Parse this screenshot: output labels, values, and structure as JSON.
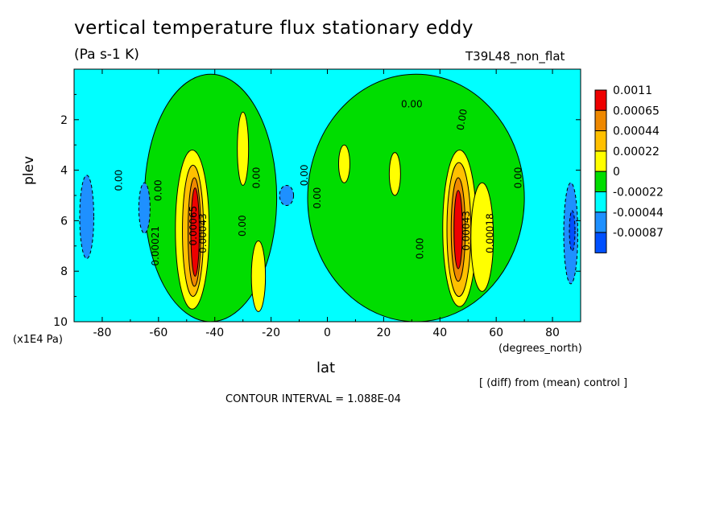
{
  "chart_data": {
    "type": "heatmap",
    "title": "vertical temperature flux stationary eddy",
    "units_label": "(Pa s-1 K)",
    "run_label": "T39L48_non_flat",
    "xlabel": "lat",
    "x_units": "(degrees_north)",
    "ylabel": "plev",
    "y_units": "(x1E4 Pa)",
    "note": "[ (diff) from (mean) control ]",
    "contour_interval": "CONTOUR INTERVAL = 1.088E-04",
    "xlim": [
      -90,
      90
    ],
    "ylim": [
      10,
      0
    ],
    "x_ticks": [
      -80,
      -60,
      -40,
      -20,
      0,
      20,
      40,
      60,
      80
    ],
    "y_ticks": [
      2,
      4,
      6,
      8,
      10
    ],
    "legend": {
      "placement": "right",
      "levels": [
        {
          "label": "0.0011",
          "color": "#ee0000"
        },
        {
          "label": "0.00065",
          "color": "#ee8800"
        },
        {
          "label": "0.00044",
          "color": "#ffc000"
        },
        {
          "label": "0.00022",
          "color": "#ffff00"
        },
        {
          "label": "0",
          "color": "#00dd00"
        },
        {
          "label": "-0.00022",
          "color": "#00ffff"
        },
        {
          "label": "-0.00044",
          "color": "#1e90ff"
        },
        {
          "label": "-0.00087",
          "color": "#0050ff"
        }
      ]
    },
    "background_level": "-0.00022",
    "features": [
      {
        "lat": [
          -65,
          -18
        ],
        "plev": [
          0.2,
          10
        ],
        "level": "0"
      },
      {
        "lat": [
          -7,
          70
        ],
        "plev": [
          0.2,
          10
        ],
        "level": "0"
      },
      {
        "lat": [
          -54,
          -42
        ],
        "plev": [
          3.2,
          9.5
        ],
        "level": "0.00022"
      },
      {
        "lat": [
          -51.5,
          -44
        ],
        "plev": [
          3.8,
          9.0
        ],
        "level": "0.00044"
      },
      {
        "lat": [
          -49.5,
          -45
        ],
        "plev": [
          4.3,
          8.6
        ],
        "level": "0.00065"
      },
      {
        "lat": [
          -48.5,
          -45.5
        ],
        "plev": [
          4.7,
          8.2
        ],
        "level": "0.0011"
      },
      {
        "lat": [
          41,
          53
        ],
        "plev": [
          3.2,
          9.4
        ],
        "level": "0.00022"
      },
      {
        "lat": [
          42.5,
          51
        ],
        "plev": [
          3.7,
          9.0
        ],
        "level": "0.00044"
      },
      {
        "lat": [
          44,
          49
        ],
        "plev": [
          4.3,
          8.4
        ],
        "level": "0.00065"
      },
      {
        "lat": [
          45,
          48
        ],
        "plev": [
          4.8,
          7.9
        ],
        "level": "0.0011"
      },
      {
        "lat": [
          51,
          59
        ],
        "plev": [
          4.5,
          8.8
        ],
        "level": "0.00022"
      },
      {
        "lat": [
          -32,
          -28
        ],
        "plev": [
          1.7,
          4.6
        ],
        "level": "0.00022"
      },
      {
        "lat": [
          -27,
          -22
        ],
        "plev": [
          6.8,
          9.6
        ],
        "level": "0.00022"
      },
      {
        "lat": [
          4,
          8
        ],
        "plev": [
          3.0,
          4.5
        ],
        "level": "0.00022"
      },
      {
        "lat": [
          22,
          26
        ],
        "plev": [
          3.3,
          5.0
        ],
        "level": "0.00022"
      },
      {
        "lat": [
          -88,
          -83
        ],
        "plev": [
          4.2,
          7.5
        ],
        "level": "-0.00044"
      },
      {
        "lat": [
          -67,
          -63
        ],
        "plev": [
          4.5,
          6.5
        ],
        "level": "-0.00044"
      },
      {
        "lat": [
          -17,
          -12
        ],
        "plev": [
          4.6,
          5.4
        ],
        "level": "-0.00044"
      },
      {
        "lat": [
          84,
          89
        ],
        "plev": [
          4.5,
          8.5
        ],
        "level": "-0.00044"
      },
      {
        "lat": [
          86,
          88
        ],
        "plev": [
          5.6,
          7.2
        ],
        "level": "-0.00087"
      }
    ],
    "contour_labels": [
      {
        "text": "0.00",
        "lat": 30,
        "plev": 1.4,
        "rotate": 0
      },
      {
        "text": "0.00",
        "lat": 48,
        "plev": 2.0,
        "rotate": -80
      },
      {
        "text": "0.00",
        "lat": -74,
        "plev": 4.4,
        "rotate": -90
      },
      {
        "text": "0.00",
        "lat": -60,
        "plev": 4.8,
        "rotate": -90
      },
      {
        "text": "0.00021",
        "lat": -61,
        "plev": 7.0,
        "rotate": -90
      },
      {
        "text": "0.00",
        "lat": -25,
        "plev": 4.3,
        "rotate": -90
      },
      {
        "text": "0.00",
        "lat": -30,
        "plev": 6.2,
        "rotate": -90
      },
      {
        "text": "0.00",
        "lat": -8,
        "plev": 4.2,
        "rotate": -90
      },
      {
        "text": "0.00",
        "lat": -3.5,
        "plev": 5.1,
        "rotate": -90
      },
      {
        "text": "0.00",
        "lat": 33,
        "plev": 7.1,
        "rotate": -90
      },
      {
        "text": "0.00",
        "lat": 68,
        "plev": 4.3,
        "rotate": -90
      },
      {
        "text": "0.00065",
        "lat": -47.5,
        "plev": 6.2,
        "rotate": -90
      },
      {
        "text": "0.00043",
        "lat": -44,
        "plev": 6.5,
        "rotate": -90
      },
      {
        "text": "0.00043",
        "lat": 49.5,
        "plev": 6.4,
        "rotate": -90
      },
      {
        "text": "0.00018",
        "lat": 58,
        "plev": 6.5,
        "rotate": -90
      }
    ]
  }
}
